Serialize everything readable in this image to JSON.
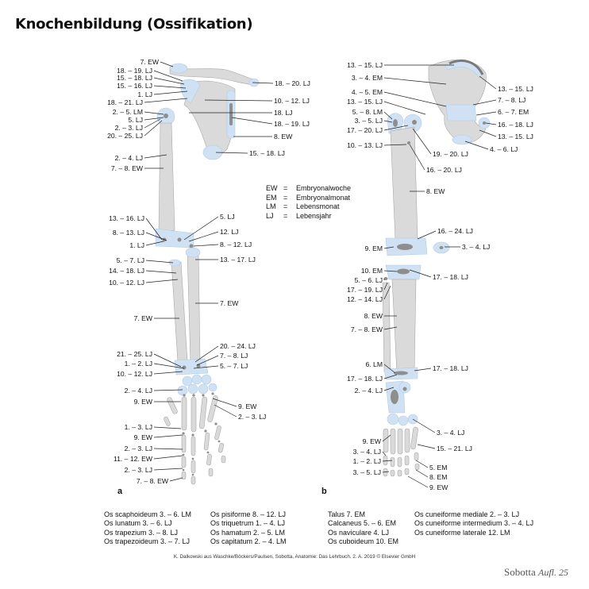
{
  "title": "Knochenbildung (Ossifikation)",
  "panel_a": "a",
  "panel_b": "b",
  "legend": [
    {
      "abbr": "EW",
      "eq": "=",
      "text": "Embryonalwoche"
    },
    {
      "abbr": "EM",
      "eq": "=",
      "text": "Embryonalmonat"
    },
    {
      "abbr": "LM",
      "eq": "=",
      "text": "Lebensmonat"
    },
    {
      "abbr": "LJ",
      "eq": "=",
      "text": "Lebensjahr"
    }
  ],
  "arm_labels_left": [
    "7. EW",
    "18. – 19. LJ",
    "15. – 18. LJ",
    "15. – 16. LJ",
    "1. LJ",
    "18. – 21. LJ",
    "2. – 5. LM",
    "5. LJ",
    "2. – 3. LJ",
    "20. – 25. LJ",
    "2. – 4. LJ",
    "7. – 8. EW",
    "13. – 16. LJ",
    "8. – 13. LJ",
    "1. LJ",
    "5. – 7. LJ",
    "14. – 18. LJ",
    "10. – 12. LJ",
    "7. EW",
    "21. – 25. LJ",
    "1. – 2. LJ",
    "10. – 12. LJ",
    "2. – 4. LJ",
    "9. EW",
    "1. – 3. LJ",
    "9. EW",
    "2. – 3. LJ",
    "11. – 12. EW",
    "2. – 3. LJ",
    "7. – 8. EW"
  ],
  "arm_labels_right": [
    "18. – 20. LJ",
    "10. – 12. LJ",
    "18. LJ",
    "18. – 19. LJ",
    "8. EW",
    "15. – 18. LJ",
    "5. LJ",
    "12. LJ",
    "8. – 12. LJ",
    "13. – 17. LJ",
    "7. EW",
    "20. – 24. LJ",
    "7. – 8. LJ",
    "5. – 7. LJ",
    "9. EW",
    "2. – 3. LJ"
  ],
  "leg_labels_left": [
    "13. – 15. LJ",
    "3. – 4. EM",
    "4. – 5. EM",
    "13. – 15. LJ",
    "5. – 8. LM",
    "3. – 5. LJ",
    "17. – 20. LJ",
    "10. – 13. LJ",
    "9. EM",
    "10. EM",
    "5. – 6. LJ",
    "17. – 19. LJ",
    "12. – 14. LJ",
    "8. EW",
    "7. – 8. EW",
    "6. LM",
    "17. – 18. LJ",
    "2. – 4. LJ",
    "9. EW",
    "3. – 4. LJ",
    "1. – 2. LJ",
    "3. – 5. LJ"
  ],
  "leg_labels_right": [
    "13. – 15. LJ",
    "7. – 8. LJ",
    "6. – 7. EM",
    "16. – 18. LJ",
    "13. – 15. LJ",
    "4. – 6. LJ",
    "19. – 20. LJ",
    "16. – 20. LJ",
    "8. EW",
    "16. – 24. LJ",
    "3. – 4. LJ",
    "17. – 18. LJ",
    "17. – 18. LJ",
    "3. – 4. LJ",
    "15. – 21. LJ",
    "5. EM",
    "8. EM",
    "9. EW"
  ],
  "carpal_list_1": [
    "Os scaphoideum 3. – 6. LM",
    "Os lunatum 3. – 6. LJ",
    "Os trapezium 3. – 8. LJ",
    "Os trapezoideum 3. – 7. LJ"
  ],
  "carpal_list_2": [
    "Os pisiforme 8. – 12. LJ",
    "Os triquetrum 1. – 4. LJ",
    "Os hamatum 2. – 5. LM",
    "Os capitatum 2. – 4. LM"
  ],
  "tarsal_list_1": [
    "Talus 7. EM",
    "Calcaneus 5. – 6. EM",
    "Os naviculare 4. LJ",
    "Os cuboideum 10. EM"
  ],
  "tarsal_list_2": [
    "Os cuneiforme mediale 2. – 3. LJ",
    "Os cuneiforme intermedium 3. – 4. LJ",
    "Os cuneiforme laterale 12. LM"
  ],
  "credit": "K. Dalkowski aus Waschke/Böckers/Paulsen, Sobotta, Anatomie: Das Lehrbuch. 2. A. 2019 © Elsevier GmbH",
  "brand": "Sobotta",
  "brand_edition": "Aufl. 25",
  "colors": {
    "bone": "#d9d9d9",
    "cartilage": "#c9def2",
    "center": "#8c8c8c",
    "outline": "#9a9a9a"
  }
}
